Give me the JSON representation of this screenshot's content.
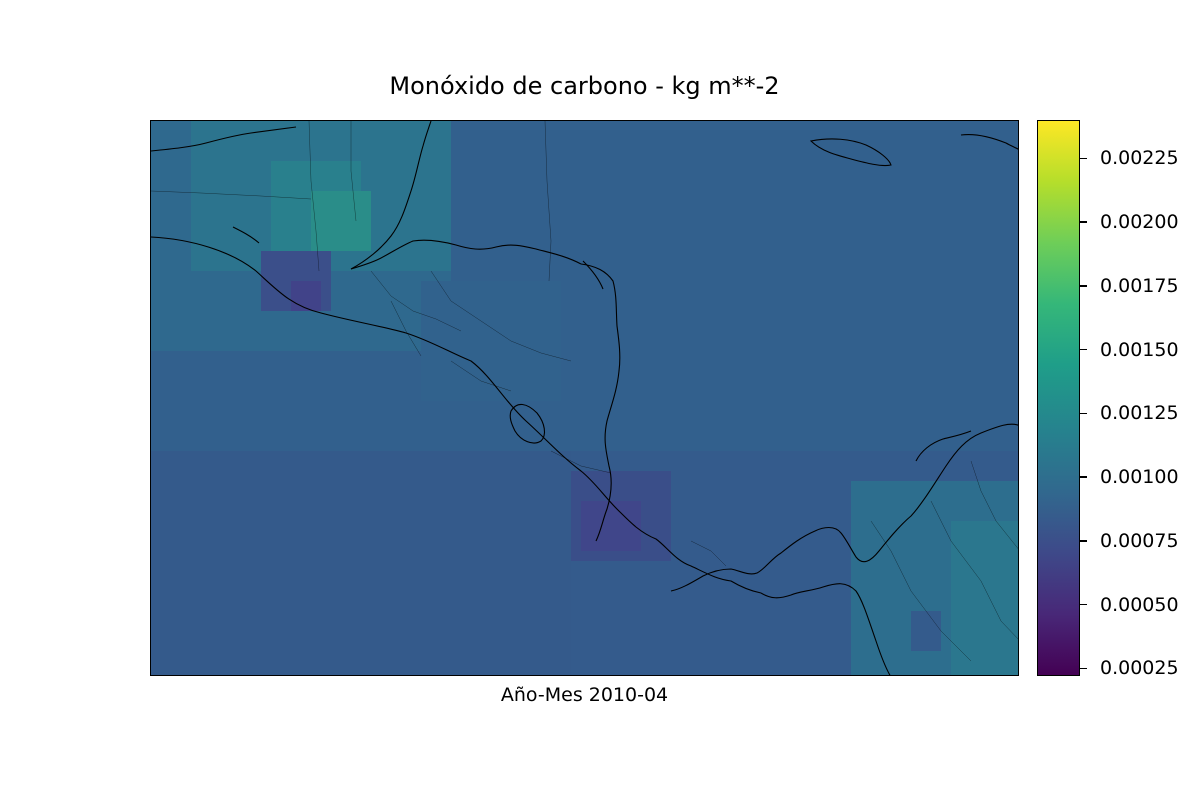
{
  "title": "Monóxido de carbono - kg m**-2",
  "xlabel": "Año-Mes 2010-04",
  "colormap": "viridis",
  "colors": {
    "ocean_base": "#345b8c",
    "ocean_north": "#33618d",
    "land_mid": "#2e6d8e",
    "hotspot_high": "#2a8c8a",
    "low_patch": "#3c4a89",
    "coastline": "#000000"
  },
  "colorbar": {
    "range": [
      0.00022,
      0.0024
    ],
    "ticks": [
      "0.00025",
      "0.00050",
      "0.00075",
      "0.00100",
      "0.00125",
      "0.00150",
      "0.00175",
      "0.00200",
      "0.00225"
    ]
  },
  "map": {
    "region": "Central America and the Caribbean",
    "features": [
      "coastlines",
      "country borders",
      "state/province borders"
    ],
    "field_levels": {
      "ocean_typical": 0.00085,
      "northern_gulf": 0.00098,
      "guatemala_belize_max": 0.00135,
      "costa_rica_panama_min": 0.0007,
      "colombia_east": 0.0011
    }
  }
}
